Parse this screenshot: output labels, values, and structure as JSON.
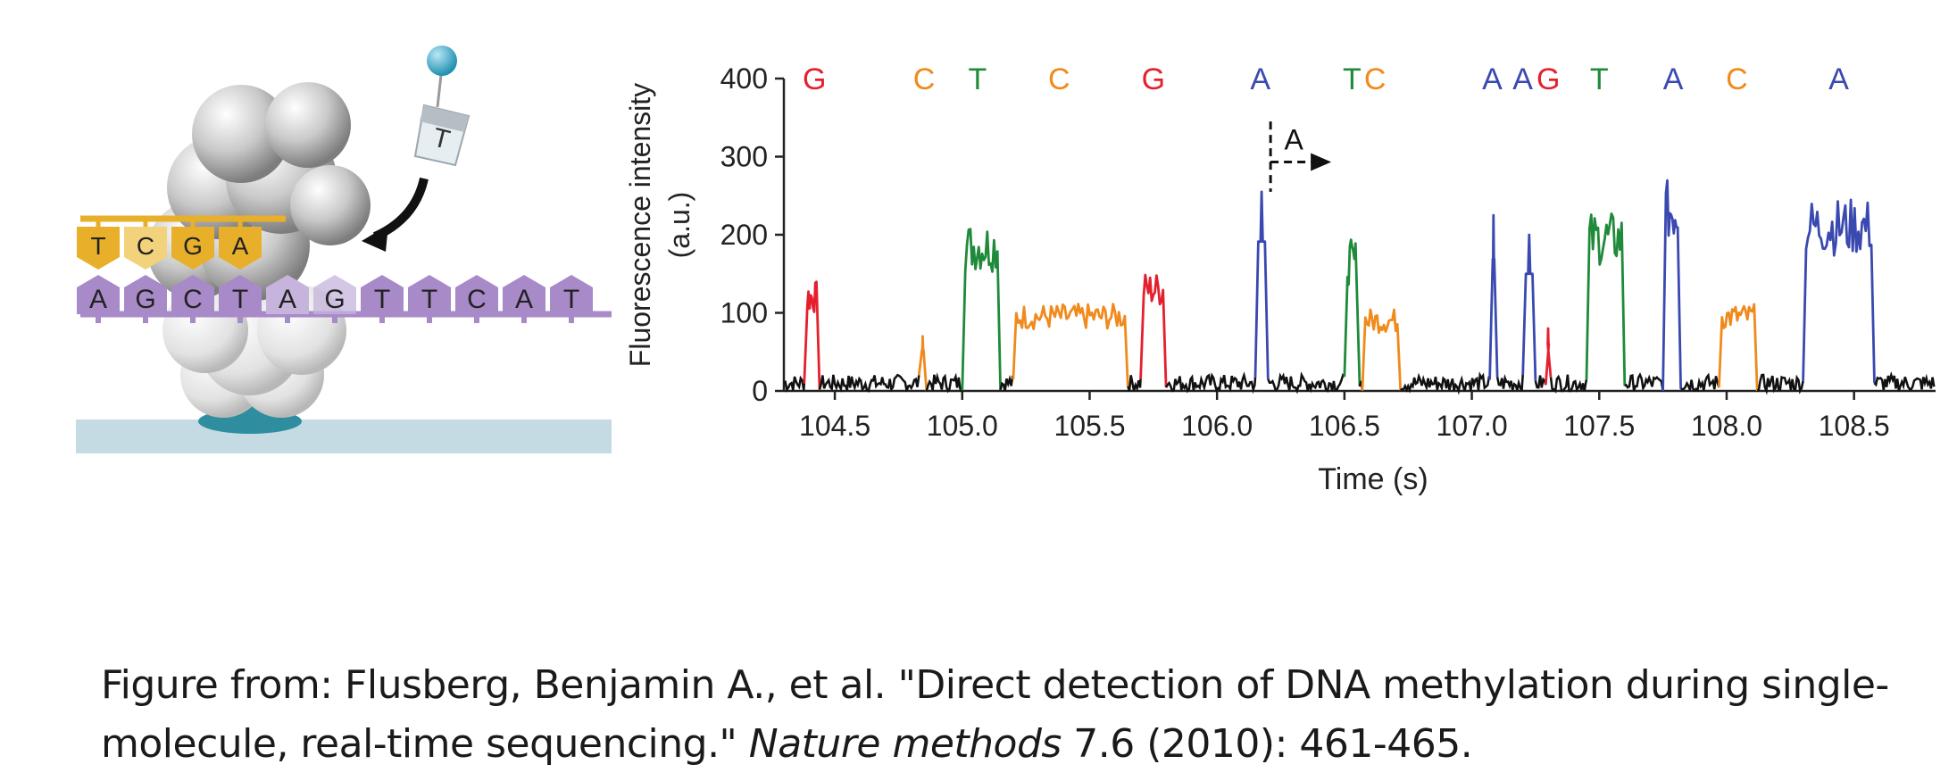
{
  "colors": {
    "A": "#3949b0",
    "C": "#f08a1c",
    "G": "#e5202e",
    "T": "#1f8a3a",
    "baseline": "#111111",
    "polymerase": "#8d8d8d",
    "template": "#a98ac9",
    "nucleotide": "#e8b02a",
    "surface": "#c5dbe4",
    "anchor": "#2e8ea0",
    "dye": "#3aa8c8"
  },
  "illustration": {
    "incoming_base": "T",
    "synthesized_bases": [
      "T",
      "C",
      "G",
      "A"
    ],
    "template_bases": [
      "A",
      "G",
      "C",
      "T",
      "A",
      "G",
      "T",
      "T",
      "C",
      "A",
      "T"
    ]
  },
  "chart_data": {
    "type": "line",
    "xlabel": "Time (s)",
    "ylabel": "Fluorescence intensity",
    "ylabel_unit": "(a.u.)",
    "xlim": [
      104.3,
      108.82
    ],
    "ylim": [
      0,
      400
    ],
    "xticks": [
      104.5,
      105.0,
      105.5,
      106.0,
      106.5,
      107.0,
      107.5,
      108.0,
      108.5
    ],
    "xtick_labels": [
      "104.5",
      "105.0",
      "105.5",
      "106.0",
      "106.5",
      "107.0",
      "107.5",
      "108.0",
      "108.5"
    ],
    "yticks": [
      0,
      100,
      200,
      300,
      400
    ],
    "ytick_labels": [
      "0",
      "100",
      "200",
      "300",
      "400"
    ],
    "grid": false,
    "baseline_level": 10,
    "pulses": [
      {
        "base": "G",
        "start": 104.38,
        "end": 104.44,
        "level": 120
      },
      {
        "base": "C",
        "start": 104.83,
        "end": 104.86,
        "level": 70
      },
      {
        "base": "T",
        "start": 105.0,
        "end": 105.15,
        "level": 185
      },
      {
        "base": "C",
        "start": 105.2,
        "end": 105.65,
        "level": 95
      },
      {
        "base": "G",
        "start": 105.7,
        "end": 105.8,
        "level": 130
      },
      {
        "base": "A",
        "start": 106.15,
        "end": 106.2,
        "level": 255
      },
      {
        "base": "T",
        "start": 106.5,
        "end": 106.56,
        "level": 165
      },
      {
        "base": "C",
        "start": 106.57,
        "end": 106.72,
        "level": 90
      },
      {
        "base": "A",
        "start": 107.07,
        "end": 107.1,
        "level": 225
      },
      {
        "base": "A",
        "start": 107.2,
        "end": 107.25,
        "level": 200
      },
      {
        "base": "G",
        "start": 107.29,
        "end": 107.31,
        "level": 80
      },
      {
        "base": "T",
        "start": 107.45,
        "end": 107.6,
        "level": 195
      },
      {
        "base": "A",
        "start": 107.75,
        "end": 107.82,
        "level": 230
      },
      {
        "base": "C",
        "start": 107.97,
        "end": 108.12,
        "level": 95
      },
      {
        "base": "A",
        "start": 108.3,
        "end": 108.58,
        "level": 210
      }
    ],
    "sequence_labels": [
      {
        "base": "G",
        "x": 104.42
      },
      {
        "base": "C",
        "x": 104.85
      },
      {
        "base": "T",
        "x": 105.06
      },
      {
        "base": "C",
        "x": 105.38
      },
      {
        "base": "G",
        "x": 105.75
      },
      {
        "base": "A",
        "x": 106.17
      },
      {
        "base": "T",
        "x": 106.53
      },
      {
        "base": "C",
        "x": 106.62
      },
      {
        "base": "A",
        "x": 107.08
      },
      {
        "base": "A",
        "x": 107.2
      },
      {
        "base": "G",
        "x": 107.3
      },
      {
        "base": "T",
        "x": 107.5
      },
      {
        "base": "A",
        "x": 107.79
      },
      {
        "base": "C",
        "x": 108.04
      },
      {
        "base": "A",
        "x": 108.44
      }
    ],
    "annotation": {
      "text": "A",
      "x": 106.21,
      "y_top": 345,
      "y_bottom": 255
    }
  },
  "caption": {
    "prefix": "Figure from: Flusberg, Benjamin A., et al. \"Direct detection of DNA methylation during single-molecule, real-time sequencing.\" ",
    "journal": "Nature methods",
    "suffix": " 7.6 (2010): 461-465."
  }
}
